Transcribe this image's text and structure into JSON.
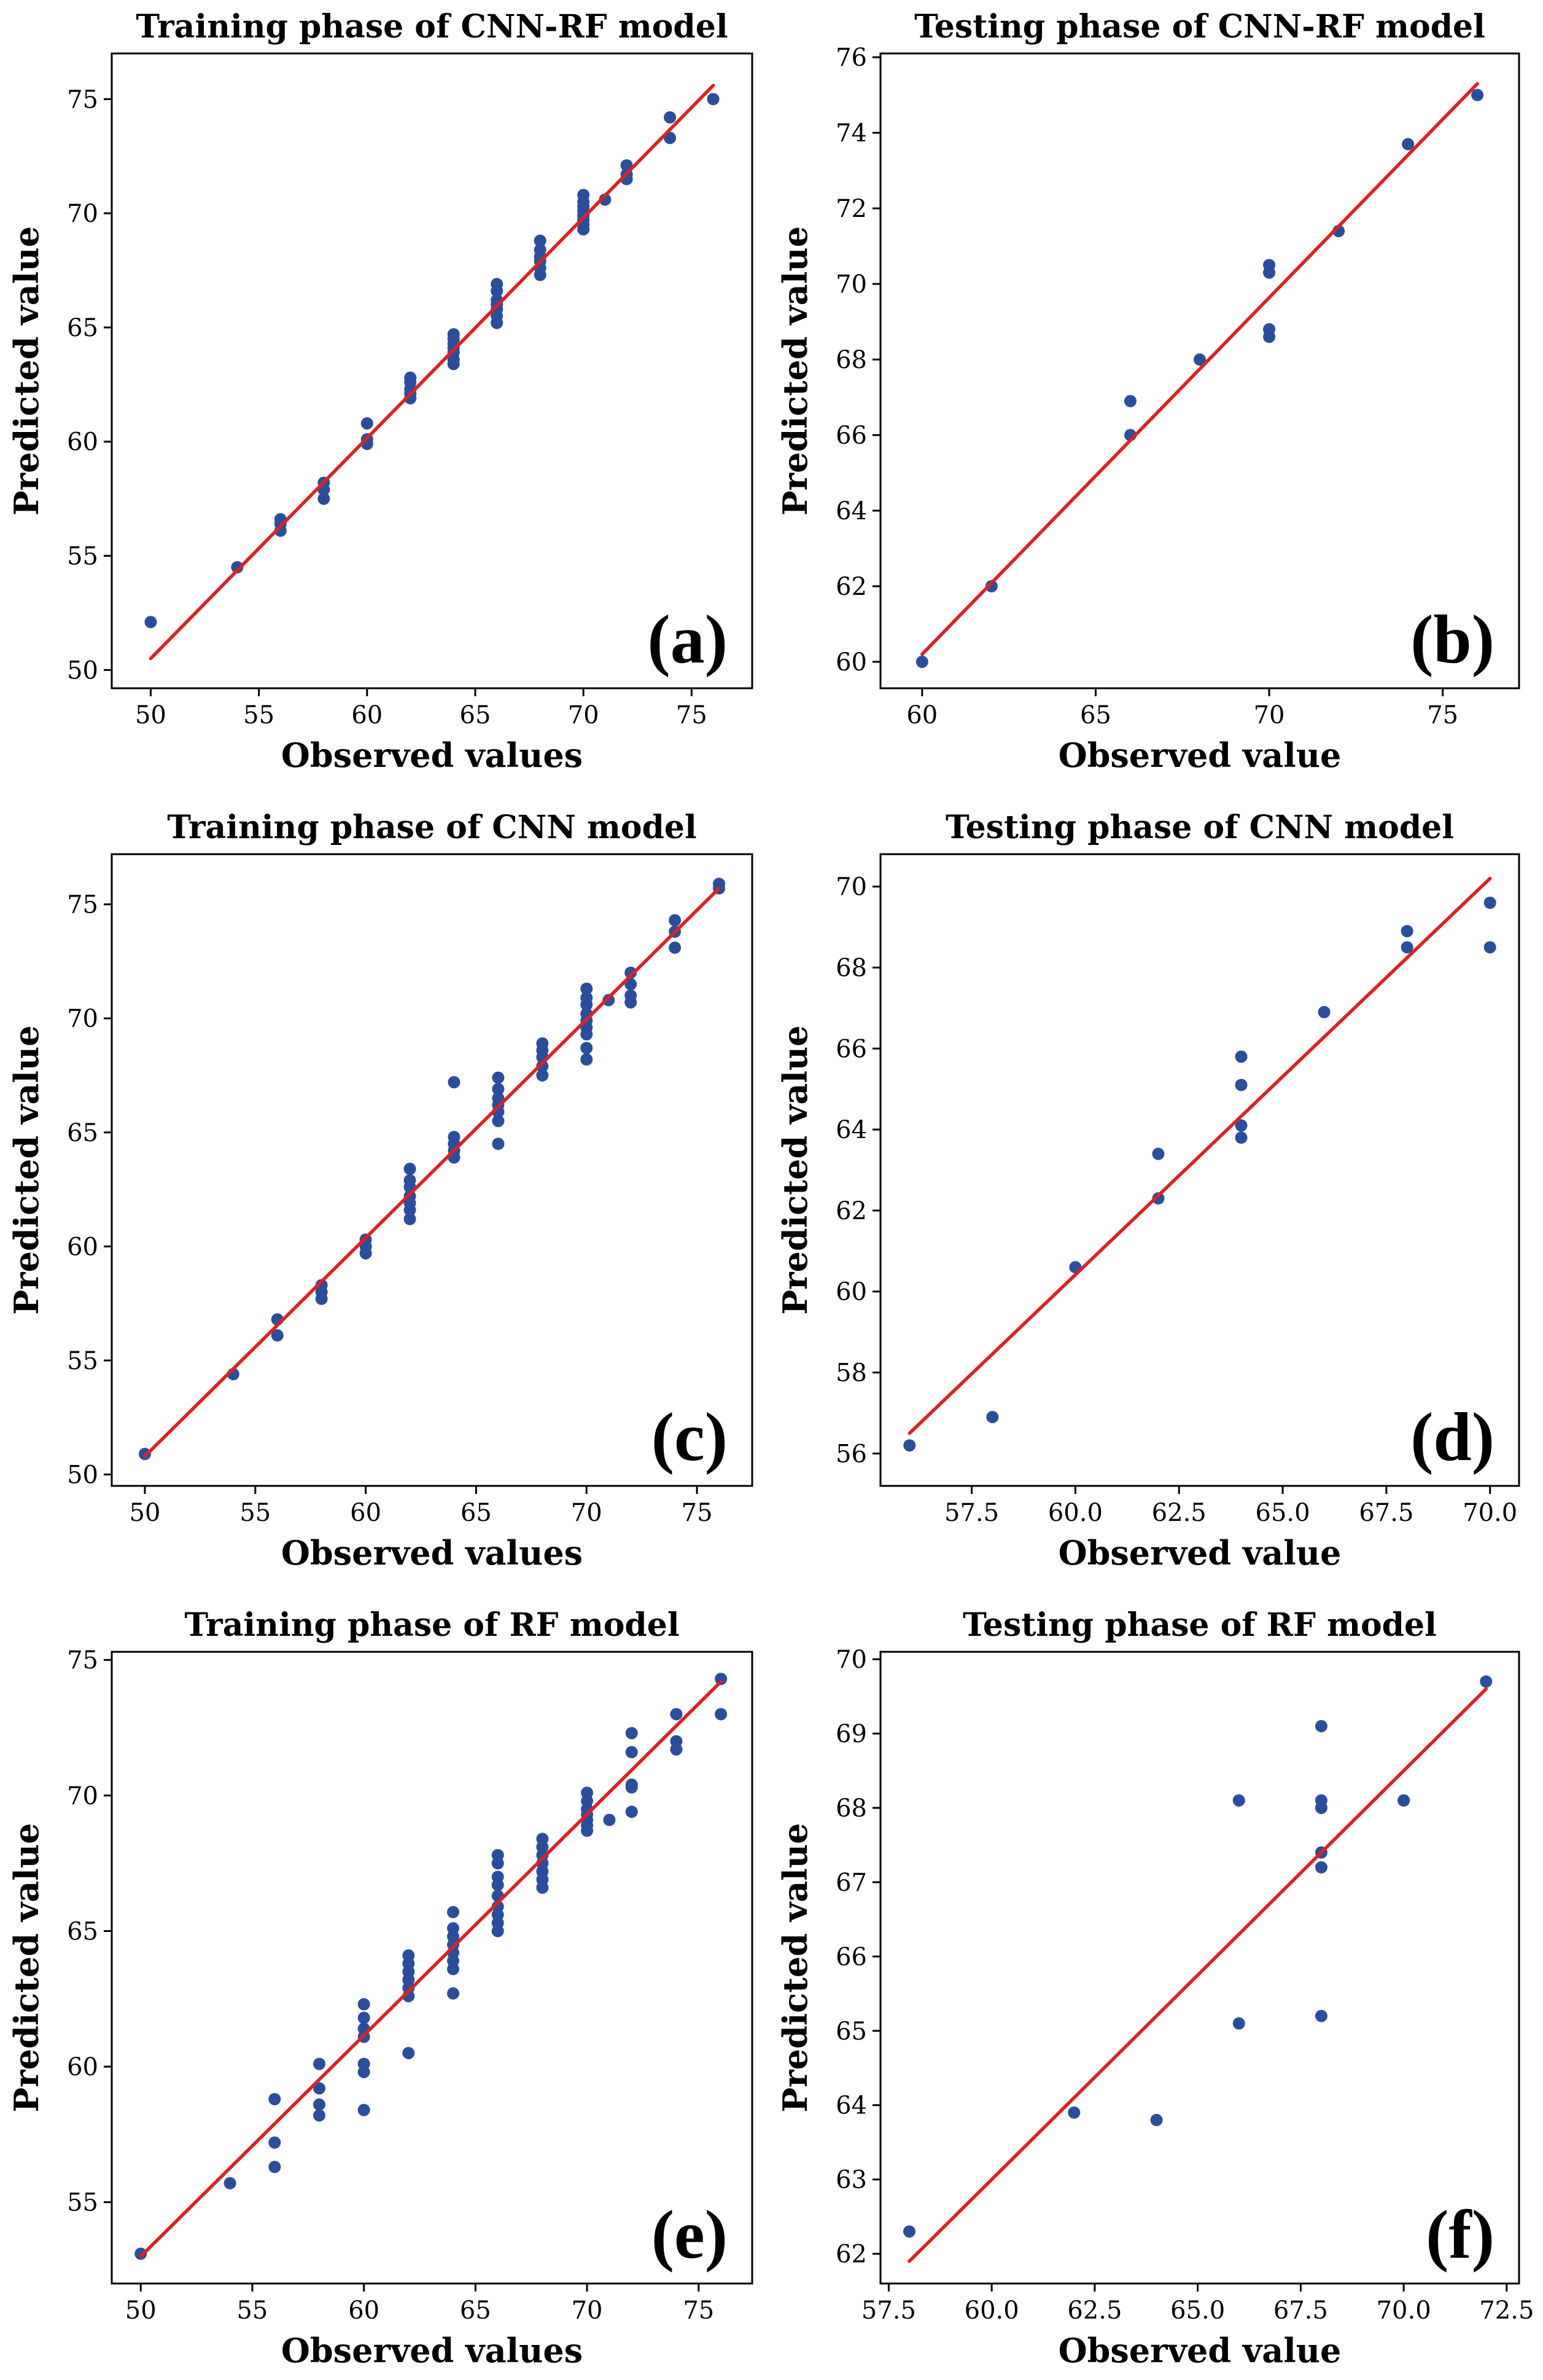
{
  "colors": {
    "points": "#2a4e9e",
    "fit_line": "#e02020",
    "axes": "#000000"
  },
  "chart_data": [
    {
      "type": "scatter",
      "panel": "(a)",
      "title": "Training phase of CNN-RF model",
      "xlabel": "Observed values",
      "ylabel": "Predicted value",
      "xlim": [
        48.2,
        77.8
      ],
      "ylim": [
        49.2,
        77.0
      ],
      "xticks": [
        50,
        55,
        60,
        65,
        70,
        75
      ],
      "yticks": [
        50,
        55,
        60,
        65,
        70,
        75
      ],
      "xtick_labels": [
        "50",
        "55",
        "60",
        "65",
        "70",
        "75"
      ],
      "ytick_labels": [
        "50",
        "55",
        "60",
        "65",
        "70",
        "75"
      ],
      "grid": false,
      "points": [
        [
          50,
          52.1
        ],
        [
          54,
          54.5
        ],
        [
          56,
          56.1
        ],
        [
          56,
          56.4
        ],
        [
          56,
          56.6
        ],
        [
          58,
          57.5
        ],
        [
          58,
          57.9
        ],
        [
          58,
          58.2
        ],
        [
          60,
          59.9
        ],
        [
          60,
          60.1
        ],
        [
          60,
          60.8
        ],
        [
          62,
          61.9
        ],
        [
          62,
          62.1
        ],
        [
          62,
          62.3
        ],
        [
          62,
          62.6
        ],
        [
          62,
          62.8
        ],
        [
          64,
          63.4
        ],
        [
          64,
          63.6
        ],
        [
          64,
          63.9
        ],
        [
          64,
          64.1
        ],
        [
          64,
          64.3
        ],
        [
          64,
          64.5
        ],
        [
          64,
          64.7
        ],
        [
          66,
          65.2
        ],
        [
          66,
          65.5
        ],
        [
          66,
          65.8
        ],
        [
          66,
          66.0
        ],
        [
          66,
          66.2
        ],
        [
          66,
          66.6
        ],
        [
          66,
          66.9
        ],
        [
          68,
          67.3
        ],
        [
          68,
          67.6
        ],
        [
          68,
          67.9
        ],
        [
          68,
          68.1
        ],
        [
          68,
          68.4
        ],
        [
          68,
          68.8
        ],
        [
          70,
          69.3
        ],
        [
          70,
          69.5
        ],
        [
          70,
          69.7
        ],
        [
          70,
          69.9
        ],
        [
          70,
          70.1
        ],
        [
          70,
          70.3
        ],
        [
          70,
          70.5
        ],
        [
          70,
          70.8
        ],
        [
          71,
          70.6
        ],
        [
          72,
          71.5
        ],
        [
          72,
          71.7
        ],
        [
          72,
          72.1
        ],
        [
          74,
          73.3
        ],
        [
          74,
          74.2
        ],
        [
          76,
          75.0
        ]
      ],
      "fit_line": [
        [
          50,
          50.5
        ],
        [
          76,
          75.6
        ]
      ]
    },
    {
      "type": "scatter",
      "panel": "(b)",
      "title": "Testing phase of CNN-RF model",
      "xlabel": "Observed value",
      "ylabel": "Predicted value",
      "xlim": [
        58.8,
        77.2
      ],
      "ylim": [
        59.3,
        76.1
      ],
      "xticks": [
        60,
        65,
        70,
        75
      ],
      "yticks": [
        60,
        62,
        64,
        66,
        68,
        70,
        72,
        74,
        76
      ],
      "xtick_labels": [
        "60",
        "65",
        "70",
        "75"
      ],
      "ytick_labels": [
        "60",
        "62",
        "64",
        "66",
        "68",
        "70",
        "72",
        "74",
        "76"
      ],
      "grid": false,
      "points": [
        [
          60,
          60.0
        ],
        [
          62,
          62.0
        ],
        [
          66,
          66.0
        ],
        [
          66,
          66.9
        ],
        [
          68,
          68.0
        ],
        [
          70,
          68.6
        ],
        [
          70,
          68.8
        ],
        [
          70,
          70.3
        ],
        [
          70,
          70.5
        ],
        [
          72,
          71.4
        ],
        [
          74,
          73.7
        ],
        [
          76,
          75.0
        ]
      ],
      "fit_line": [
        [
          60,
          60.2
        ],
        [
          76,
          75.3
        ]
      ]
    },
    {
      "type": "scatter",
      "panel": "(c)",
      "title": "Training phase of CNN model",
      "xlabel": "Observed values",
      "ylabel": "Predicted value",
      "xlim": [
        48.5,
        77.5
      ],
      "ylim": [
        49.5,
        77.2
      ],
      "xticks": [
        50,
        55,
        60,
        65,
        70,
        75
      ],
      "yticks": [
        50,
        55,
        60,
        65,
        70,
        75
      ],
      "xtick_labels": [
        "50",
        "55",
        "60",
        "65",
        "70",
        "75"
      ],
      "ytick_labels": [
        "50",
        "55",
        "60",
        "65",
        "70",
        "75"
      ],
      "grid": false,
      "points": [
        [
          50,
          50.9
        ],
        [
          54,
          54.4
        ],
        [
          56,
          56.1
        ],
        [
          56,
          56.8
        ],
        [
          58,
          57.7
        ],
        [
          58,
          58.0
        ],
        [
          58,
          58.3
        ],
        [
          60,
          59.7
        ],
        [
          60,
          60.0
        ],
        [
          60,
          60.3
        ],
        [
          62,
          61.2
        ],
        [
          62,
          61.6
        ],
        [
          62,
          61.9
        ],
        [
          62,
          62.2
        ],
        [
          62,
          62.6
        ],
        [
          62,
          62.9
        ],
        [
          62,
          63.4
        ],
        [
          64,
          63.9
        ],
        [
          64,
          64.2
        ],
        [
          64,
          64.5
        ],
        [
          64,
          64.8
        ],
        [
          64,
          67.2
        ],
        [
          66,
          64.5
        ],
        [
          66,
          65.5
        ],
        [
          66,
          65.9
        ],
        [
          66,
          66.2
        ],
        [
          66,
          66.5
        ],
        [
          66,
          66.9
        ],
        [
          66,
          67.4
        ],
        [
          68,
          67.5
        ],
        [
          68,
          67.9
        ],
        [
          68,
          68.3
        ],
        [
          68,
          68.6
        ],
        [
          68,
          68.9
        ],
        [
          70,
          68.2
        ],
        [
          70,
          68.7
        ],
        [
          70,
          69.3
        ],
        [
          70,
          69.6
        ],
        [
          70,
          69.9
        ],
        [
          70,
          70.2
        ],
        [
          70,
          70.6
        ],
        [
          70,
          70.9
        ],
        [
          70,
          71.3
        ],
        [
          71,
          70.8
        ],
        [
          72,
          70.7
        ],
        [
          72,
          71.0
        ],
        [
          72,
          71.5
        ],
        [
          72,
          72.0
        ],
        [
          74,
          73.1
        ],
        [
          74,
          73.8
        ],
        [
          74,
          74.3
        ],
        [
          76,
          75.7
        ],
        [
          76,
          75.9
        ]
      ],
      "fit_line": [
        [
          50,
          50.8
        ],
        [
          76,
          75.7
        ]
      ]
    },
    {
      "type": "scatter",
      "panel": "(d)",
      "title": "Testing phase of CNN model",
      "xlabel": "Observed value",
      "ylabel": "Predicted value",
      "xlim": [
        55.3,
        70.7
      ],
      "ylim": [
        55.2,
        70.8
      ],
      "xticks": [
        57.5,
        60.0,
        62.5,
        65.0,
        67.5,
        70.0
      ],
      "yticks": [
        56,
        58,
        60,
        62,
        64,
        66,
        68,
        70
      ],
      "xtick_labels": [
        "57.5",
        "60.0",
        "62.5",
        "65.0",
        "67.5",
        "70.0"
      ],
      "ytick_labels": [
        "56",
        "58",
        "60",
        "62",
        "64",
        "66",
        "68",
        "70"
      ],
      "grid": false,
      "points": [
        [
          56,
          56.2
        ],
        [
          58,
          56.9
        ],
        [
          60,
          60.6
        ],
        [
          62,
          62.3
        ],
        [
          62,
          63.4
        ],
        [
          64,
          63.8
        ],
        [
          64,
          64.1
        ],
        [
          64,
          65.1
        ],
        [
          64,
          65.8
        ],
        [
          66,
          66.9
        ],
        [
          68,
          68.5
        ],
        [
          68,
          68.9
        ],
        [
          70,
          68.5
        ],
        [
          70,
          69.6
        ]
      ],
      "fit_line": [
        [
          56,
          56.5
        ],
        [
          70,
          70.2
        ]
      ]
    },
    {
      "type": "scatter",
      "panel": "(e)",
      "title": "Training phase of RF model",
      "xlabel": "Observed values",
      "ylabel": "Predicted value",
      "xlim": [
        48.7,
        77.4
      ],
      "ylim": [
        52.0,
        75.3
      ],
      "xticks": [
        50,
        55,
        60,
        65,
        70,
        75
      ],
      "yticks": [
        55,
        60,
        65,
        70,
        75
      ],
      "xtick_labels": [
        "50",
        "55",
        "60",
        "65",
        "70",
        "75"
      ],
      "ytick_labels": [
        "55",
        "60",
        "65",
        "70",
        "75"
      ],
      "grid": false,
      "points": [
        [
          50,
          53.1
        ],
        [
          54,
          55.7
        ],
        [
          56,
          56.3
        ],
        [
          56,
          57.2
        ],
        [
          56,
          58.8
        ],
        [
          58,
          58.2
        ],
        [
          58,
          58.6
        ],
        [
          58,
          59.2
        ],
        [
          58,
          60.1
        ],
        [
          60,
          58.4
        ],
        [
          60,
          59.8
        ],
        [
          60,
          60.1
        ],
        [
          60,
          61.1
        ],
        [
          60,
          61.4
        ],
        [
          60,
          61.8
        ],
        [
          60,
          62.3
        ],
        [
          62,
          60.5
        ],
        [
          62,
          62.6
        ],
        [
          62,
          62.9
        ],
        [
          62,
          63.2
        ],
        [
          62,
          63.5
        ],
        [
          62,
          63.8
        ],
        [
          62,
          64.1
        ],
        [
          64,
          62.7
        ],
        [
          64,
          63.6
        ],
        [
          64,
          63.9
        ],
        [
          64,
          64.2
        ],
        [
          64,
          64.5
        ],
        [
          64,
          64.8
        ],
        [
          64,
          65.1
        ],
        [
          64,
          65.7
        ],
        [
          66,
          65.0
        ],
        [
          66,
          65.3
        ],
        [
          66,
          65.6
        ],
        [
          66,
          65.9
        ],
        [
          66,
          66.3
        ],
        [
          66,
          66.7
        ],
        [
          66,
          67.0
        ],
        [
          66,
          67.5
        ],
        [
          66,
          67.8
        ],
        [
          68,
          66.6
        ],
        [
          68,
          66.9
        ],
        [
          68,
          67.2
        ],
        [
          68,
          67.5
        ],
        [
          68,
          67.8
        ],
        [
          68,
          68.1
        ],
        [
          68,
          68.4
        ],
        [
          70,
          68.7
        ],
        [
          70,
          68.9
        ],
        [
          70,
          69.1
        ],
        [
          70,
          69.3
        ],
        [
          70,
          69.5
        ],
        [
          70,
          69.8
        ],
        [
          70,
          70.1
        ],
        [
          71,
          69.1
        ],
        [
          72,
          69.4
        ],
        [
          72,
          70.3
        ],
        [
          72,
          70.4
        ],
        [
          72,
          71.6
        ],
        [
          72,
          72.3
        ],
        [
          74,
          71.7
        ],
        [
          74,
          72.0
        ],
        [
          74,
          73.0
        ],
        [
          76,
          73.0
        ],
        [
          76,
          74.3
        ]
      ],
      "fit_line": [
        [
          50,
          53.0
        ],
        [
          76,
          74.2
        ]
      ]
    },
    {
      "type": "scatter",
      "panel": "(f)",
      "title": "Testing phase of RF model",
      "xlabel": "Observed value",
      "ylabel": "Predicted value",
      "xlim": [
        57.3,
        72.8
      ],
      "ylim": [
        61.6,
        70.1
      ],
      "xticks": [
        57.5,
        60.0,
        62.5,
        65.0,
        67.5,
        70.0,
        72.5
      ],
      "yticks": [
        62,
        63,
        64,
        65,
        66,
        67,
        68,
        69,
        70
      ],
      "xtick_labels": [
        "57.5",
        "60.0",
        "62.5",
        "65.0",
        "67.5",
        "70.0",
        "72.5"
      ],
      "ytick_labels": [
        "62",
        "63",
        "64",
        "65",
        "66",
        "67",
        "68",
        "69",
        "70"
      ],
      "grid": false,
      "points": [
        [
          58,
          62.3
        ],
        [
          62,
          63.9
        ],
        [
          64,
          63.8
        ],
        [
          66,
          65.1
        ],
        [
          66,
          68.1
        ],
        [
          68,
          65.2
        ],
        [
          68,
          67.2
        ],
        [
          68,
          67.4
        ],
        [
          68,
          68.0
        ],
        [
          68,
          68.1
        ],
        [
          68,
          69.1
        ],
        [
          70,
          68.1
        ],
        [
          70,
          68.1
        ],
        [
          72,
          69.7
        ]
      ],
      "fit_line": [
        [
          58,
          61.9
        ],
        [
          72,
          69.6
        ]
      ]
    }
  ]
}
